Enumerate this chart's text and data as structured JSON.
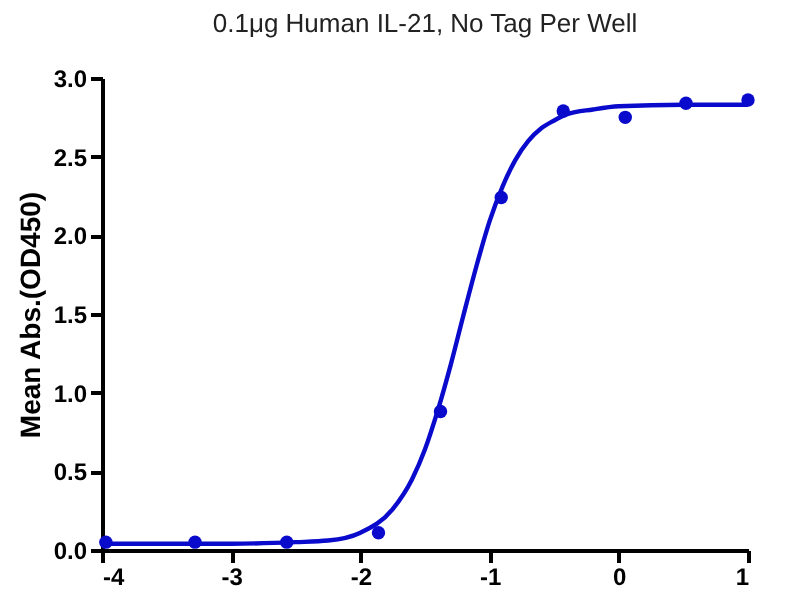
{
  "chart_data": {
    "type": "scatter",
    "title": "0.1μg Human IL-21, No Tag Per Well",
    "ylabel": "Mean Abs.(OD450)",
    "series": [
      {
        "type": "scatter",
        "color": "#0a0acc",
        "marker": "circle",
        "x": [
          -3.97,
          -3.28,
          -2.57,
          -1.86,
          -1.38,
          -0.91,
          -0.43,
          0.05,
          0.52,
          1.0
        ],
        "values": [
          0.05,
          0.05,
          0.05,
          0.11,
          0.88,
          2.24,
          2.79,
          2.75,
          2.84,
          2.86
        ]
      },
      {
        "type": "line",
        "color": "#0a0acc",
        "line_style": "solid",
        "x": [
          -4,
          -3,
          -2.5,
          -2.25,
          -2,
          -1.75,
          -1.6,
          -1.5,
          -1.4,
          -1.3,
          -1.2,
          -1.1,
          -1.0,
          -0.9,
          -0.8,
          -0.7,
          -0.6,
          -0.5,
          -0.4,
          -0.2,
          0,
          0.5,
          1
        ],
        "values": [
          0.04,
          0.04,
          0.05,
          0.06,
          0.11,
          0.26,
          0.45,
          0.64,
          0.89,
          1.18,
          1.5,
          1.81,
          2.09,
          2.31,
          2.48,
          2.6,
          2.68,
          2.73,
          2.77,
          2.8,
          2.82,
          2.83,
          2.83
        ]
      }
    ],
    "xlim": [
      -4,
      1
    ],
    "xticks": [
      -4,
      -3,
      -2,
      -1,
      0,
      1
    ],
    "ylim": [
      0,
      3
    ],
    "yticks": [
      {
        "value": 0,
        "label": "0.0"
      },
      {
        "value": 0.5,
        "label": "0.5"
      },
      {
        "value": 1,
        "label": "1.0"
      },
      {
        "value": 1.5,
        "label": "1.5"
      },
      {
        "value": 2,
        "label": "2.0"
      },
      {
        "value": 2.5,
        "label": "2.5"
      },
      {
        "value": 3,
        "label": "3.0"
      }
    ],
    "grid": false
  }
}
